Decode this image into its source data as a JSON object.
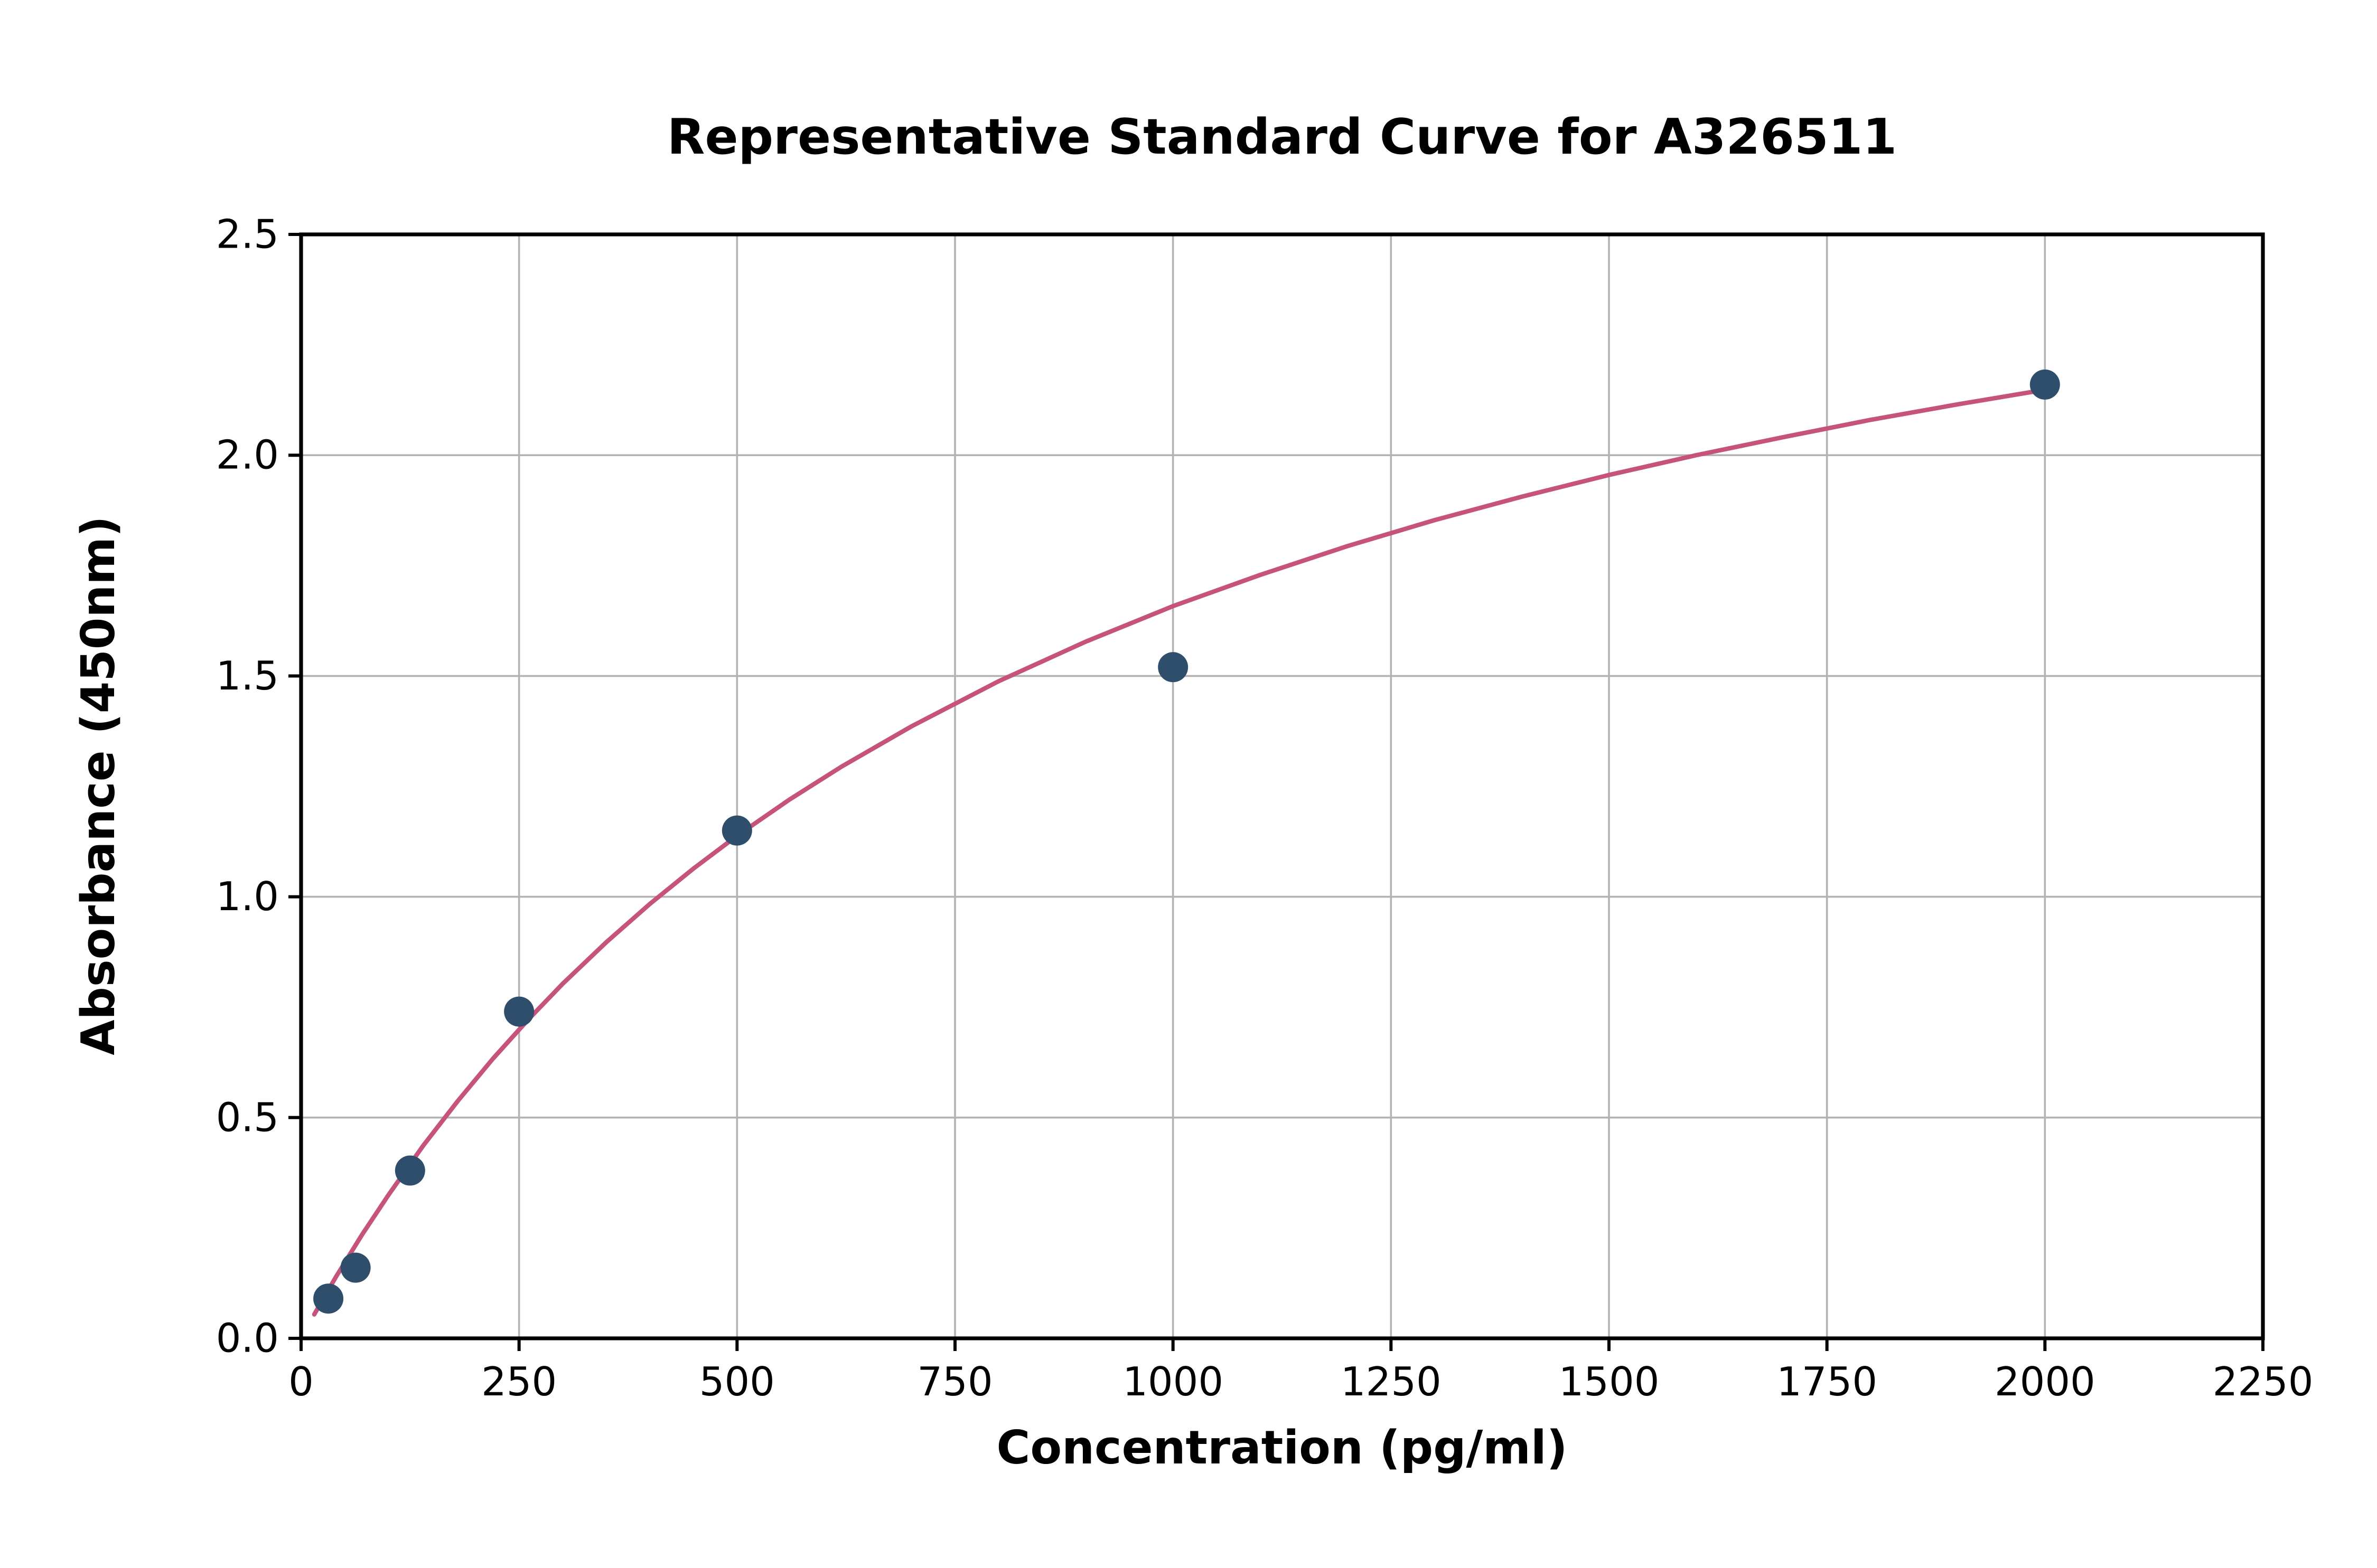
{
  "chart_data": {
    "type": "scatter",
    "title": "Representative Standard Curve for A326511",
    "xlabel": "Concentration (pg/ml)",
    "ylabel": "Absorbance (450nm)",
    "xlim": [
      0,
      2250
    ],
    "ylim": [
      0,
      2.5
    ],
    "grid": true,
    "legend": "none",
    "x_ticks": [
      0,
      250,
      500,
      750,
      1000,
      1250,
      1500,
      1750,
      2000,
      2250
    ],
    "x_tick_labels": [
      "0",
      "250",
      "500",
      "750",
      "1000",
      "1250",
      "1500",
      "1750",
      "2000",
      "2250"
    ],
    "y_ticks": [
      0,
      0.5,
      1.0,
      1.5,
      2.0,
      2.5
    ],
    "y_tick_labels": [
      "0.0",
      "0.5",
      "1.0",
      "1.5",
      "2.0",
      "2.5"
    ],
    "points": [
      [
        31.25,
        0.09
      ],
      [
        62.5,
        0.16
      ],
      [
        125,
        0.38
      ],
      [
        250,
        0.74
      ],
      [
        500,
        1.15
      ],
      [
        1000,
        1.52
      ],
      [
        2000,
        2.16
      ]
    ],
    "fit_curve": [
      [
        15,
        0.054
      ],
      [
        40,
        0.139
      ],
      [
        70,
        0.235
      ],
      [
        100,
        0.324
      ],
      [
        140,
        0.436
      ],
      [
        180,
        0.538
      ],
      [
        220,
        0.633
      ],
      [
        260,
        0.721
      ],
      [
        300,
        0.803
      ],
      [
        350,
        0.897
      ],
      [
        400,
        0.984
      ],
      [
        450,
        1.064
      ],
      [
        500,
        1.138
      ],
      [
        560,
        1.22
      ],
      [
        620,
        1.295
      ],
      [
        700,
        1.386
      ],
      [
        800,
        1.488
      ],
      [
        900,
        1.578
      ],
      [
        1000,
        1.658
      ],
      [
        1100,
        1.729
      ],
      [
        1200,
        1.794
      ],
      [
        1300,
        1.853
      ],
      [
        1400,
        1.906
      ],
      [
        1500,
        1.955
      ],
      [
        1600,
        2.0
      ],
      [
        1700,
        2.041
      ],
      [
        1800,
        2.08
      ],
      [
        1900,
        2.115
      ],
      [
        2000,
        2.148
      ]
    ],
    "point_color": "#2f4e6c",
    "curve_color": "#c5537b",
    "grid_color": "#b3b3b3",
    "frame_color": "#000000",
    "background_color": "#ffffff"
  }
}
